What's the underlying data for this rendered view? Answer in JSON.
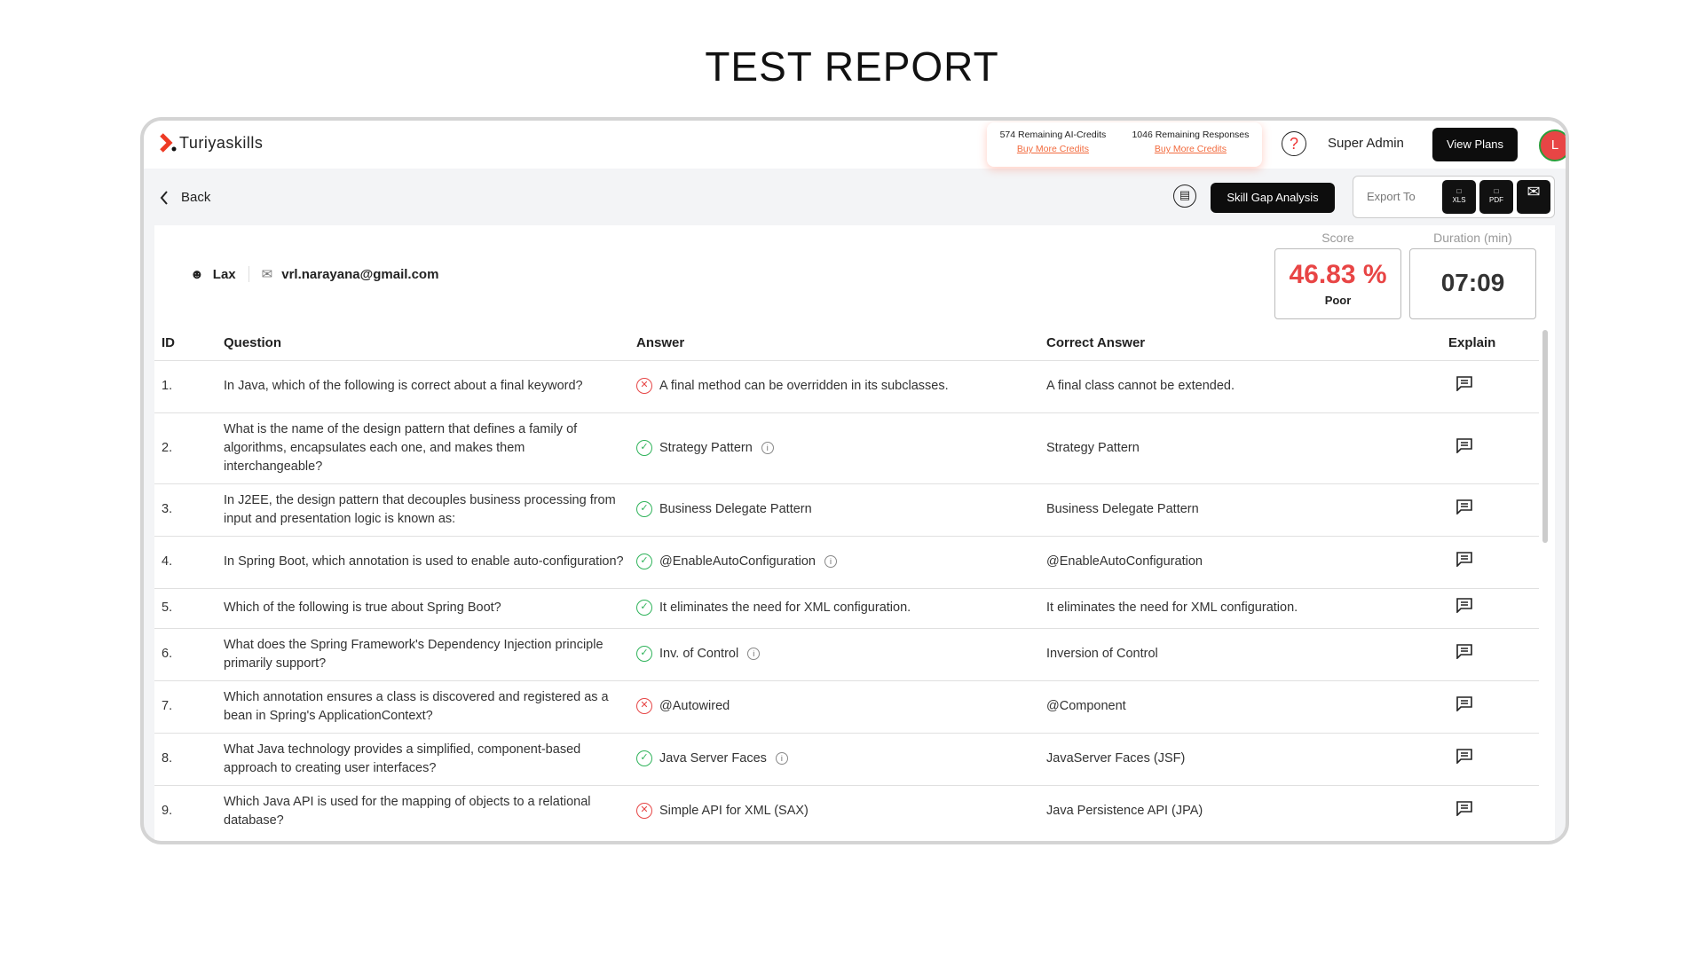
{
  "page_title": "TEST REPORT",
  "header": {
    "brand": "Turiyaskills",
    "credits": [
      {
        "text": "574 Remaining AI-Credits",
        "link": "Buy More Credits"
      },
      {
        "text": "1046 Remaining Responses",
        "link": "Buy More Credits"
      }
    ],
    "help": "?",
    "user_role": "Super Admin",
    "view_plans": "View Plans",
    "avatar_initial": "L"
  },
  "toolbar": {
    "back": "Back",
    "skill_gap": "Skill Gap Analysis",
    "export_label": "Export To",
    "xls": "XLS",
    "pdf": "PDF"
  },
  "candidate": {
    "name": "Lax",
    "email": "vrl.narayana@gmail.com"
  },
  "score": {
    "label": "Score",
    "value": "46.83 %",
    "rating": "Poor",
    "color": "#e84545"
  },
  "duration": {
    "label": "Duration (min)",
    "value": "07:09"
  },
  "table": {
    "headers": [
      "ID",
      "Question",
      "Answer",
      "Correct Answer",
      "Explain"
    ],
    "rows": [
      {
        "id": "1.",
        "q": "In Java, which of the following is correct about a final keyword?",
        "a": "A final method can be overridden in its subclasses.",
        "correct": false,
        "info": false,
        "ca": "A final class cannot be extended."
      },
      {
        "id": "2.",
        "q": "What is the name of the design pattern that defines a family of algorithms, encapsulates each one, and makes them interchangeable?",
        "a": "Strategy Pattern",
        "correct": true,
        "info": true,
        "ca": "Strategy Pattern"
      },
      {
        "id": "3.",
        "q": "In J2EE, the design pattern that decouples business processing from input and presentation logic is known as:",
        "a": "Business Delegate Pattern",
        "correct": true,
        "info": false,
        "ca": "Business Delegate Pattern"
      },
      {
        "id": "4.",
        "q": "In Spring Boot, which annotation is used to enable auto-configuration?",
        "a": "@EnableAutoConfiguration",
        "correct": true,
        "info": true,
        "ca": "@EnableAutoConfiguration"
      },
      {
        "id": "5.",
        "q": "Which of the following is true about Spring Boot?",
        "a": "It eliminates the need for XML configuration.",
        "correct": true,
        "info": false,
        "ca": "It eliminates the need for XML configuration."
      },
      {
        "id": "6.",
        "q": "What does the Spring Framework's Dependency Injection principle primarily support?",
        "a": "Inv. of Control",
        "correct": true,
        "info": true,
        "ca": "Inversion of Control"
      },
      {
        "id": "7.",
        "q": "Which annotation ensures a class is discovered and registered as a bean in Spring's ApplicationContext?",
        "a": "@Autowired",
        "correct": false,
        "info": false,
        "ca": "@Component"
      },
      {
        "id": "8.",
        "q": "What Java technology provides a simplified, component-based approach to creating user interfaces?",
        "a": "Java Server Faces",
        "correct": true,
        "info": true,
        "ca": "JavaServer Faces (JSF)"
      },
      {
        "id": "9.",
        "q": "Which Java API is used for the mapping of objects to a relational database?",
        "a": "Simple API for XML (SAX)",
        "correct": false,
        "info": false,
        "ca": "Java Persistence API (JPA)"
      }
    ]
  }
}
